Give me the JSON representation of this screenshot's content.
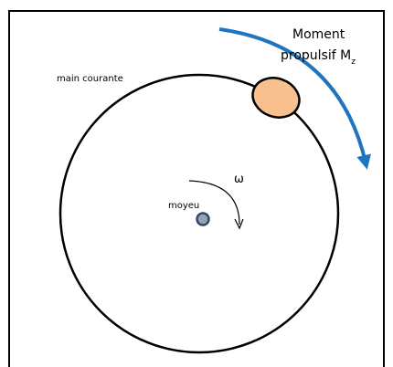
{
  "labels": {
    "moment_line1": "Moment",
    "moment_line2": "propulsif M",
    "moment_subscript": "z",
    "handrim": "main courante",
    "hub": "moyeu",
    "omega": "ω"
  }
}
